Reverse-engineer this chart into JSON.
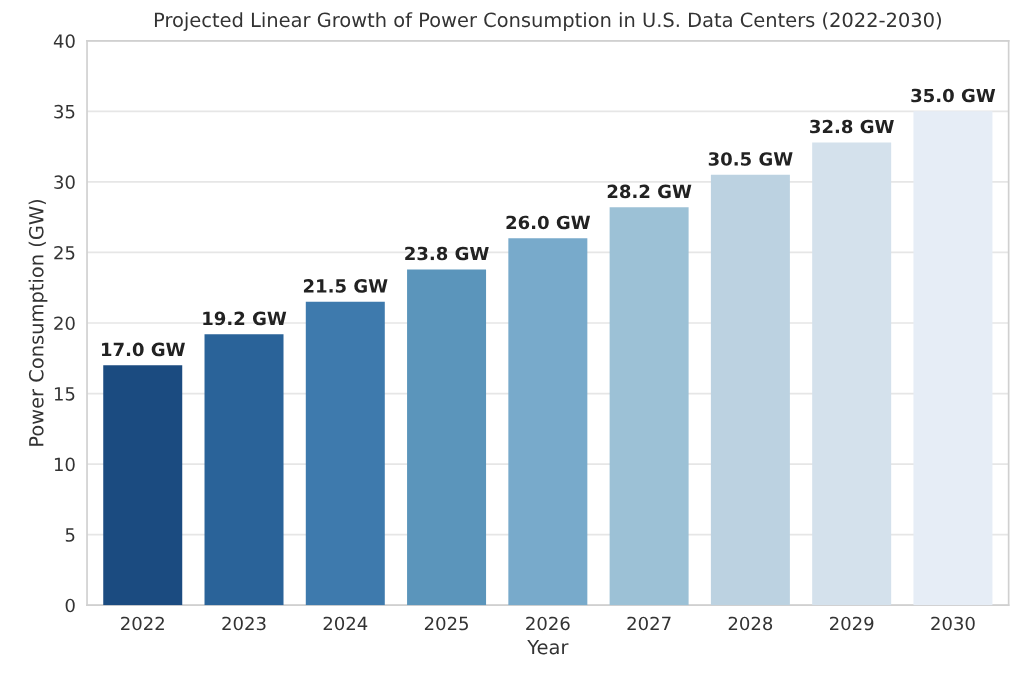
{
  "chart_data": {
    "type": "bar",
    "title": "Projected Linear Growth of Power Consumption in U.S. Data Centers (2022-2030)",
    "xlabel": "Year",
    "ylabel": "Power Consumption (GW)",
    "categories": [
      "2022",
      "2023",
      "2024",
      "2025",
      "2026",
      "2027",
      "2028",
      "2029",
      "2030"
    ],
    "values": [
      17.0,
      19.2,
      21.5,
      23.8,
      26.0,
      28.2,
      30.5,
      32.8,
      35.0
    ],
    "colors": [
      "#1b4b80",
      "#2a6399",
      "#3e7aad",
      "#5b95bb",
      "#78aacb",
      "#9cc1d6",
      "#bcd2e1",
      "#d4e1ec",
      "#e6edf6"
    ],
    "value_labels": [
      "17.0 GW",
      "19.2 GW",
      "21.5 GW",
      "23.8 GW",
      "26.0 GW",
      "28.2 GW",
      "30.5 GW",
      "32.8 GW",
      "35.0 GW"
    ],
    "ylim": [
      0,
      40
    ],
    "yticks": [
      0,
      5,
      10,
      15,
      20,
      25,
      30,
      35,
      40
    ],
    "grid": "y"
  }
}
